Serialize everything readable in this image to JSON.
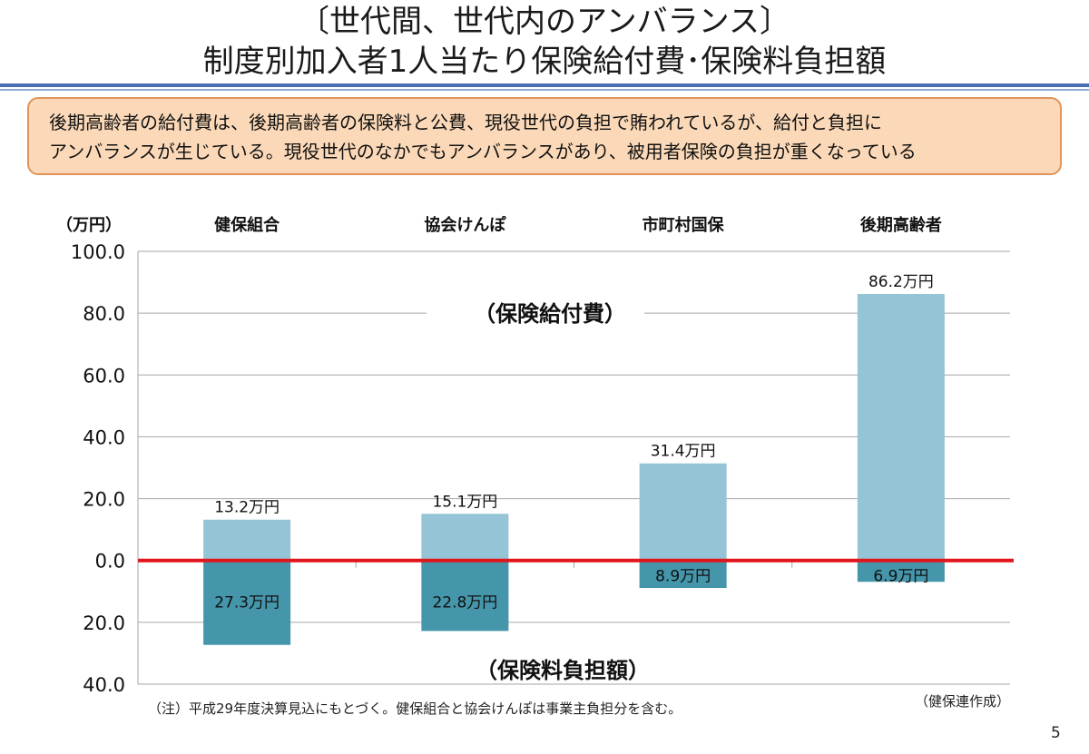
{
  "header": {
    "title_line1": "〔世代間、世代内のアンバランス〕",
    "title_line2": "制度別加入者1人当たり保険給付費･保険料負担額"
  },
  "callout": {
    "line1": "後期高齢者の給付費は、後期高齢者の保険料と公費、現役世代の負担で賄われているが、給付と負担に",
    "line2": "アンバランスが生じている。現役世代のなかでもアンバランスがあり、被用者保険の負担が重くなっている"
  },
  "colors": {
    "benefit_bar": "#94c4d5",
    "premium_bar": "#4595ab",
    "zero_line": "#e0161c",
    "grid": "#a6a6a6",
    "callout_bg": "#fbd9b8",
    "callout_border": "#e0945a",
    "header_rule": "#4a6fb0"
  },
  "chart_data": {
    "type": "bar",
    "unit_label": "（万円）",
    "categories": [
      "健保組合",
      "協会けんぽ",
      "市町村国保",
      "後期高齢者"
    ],
    "series": [
      {
        "name": "保険給付費",
        "direction": "up",
        "values": [
          13.2,
          15.1,
          31.4,
          86.2
        ],
        "labels": [
          "13.2万円",
          "15.1万円",
          "31.4万円",
          "86.2万円"
        ]
      },
      {
        "name": "保険料負担額",
        "direction": "down",
        "values": [
          27.3,
          22.8,
          8.9,
          6.9
        ],
        "labels": [
          "27.3万円",
          "22.8万円",
          "8.9万円",
          "6.9万円"
        ]
      }
    ],
    "ylim": [
      -40,
      100
    ],
    "yticks": [
      100,
      80,
      60,
      40,
      20,
      0,
      -20,
      -40
    ],
    "ytick_labels": [
      "100.0",
      "80.0",
      "60.0",
      "40.0",
      "20.0",
      "0.0",
      "20.0",
      "40.0"
    ],
    "section_labels": {
      "upper": "（保険給付費）",
      "lower": "（保険料負担額）"
    },
    "grid": true
  },
  "notes": {
    "footnote": "（注）平成29年度決算見込にもとづく。健保組合と協会けんぽは事業主負担分を含む。",
    "source": "（健保連作成）"
  },
  "page_number": "5"
}
